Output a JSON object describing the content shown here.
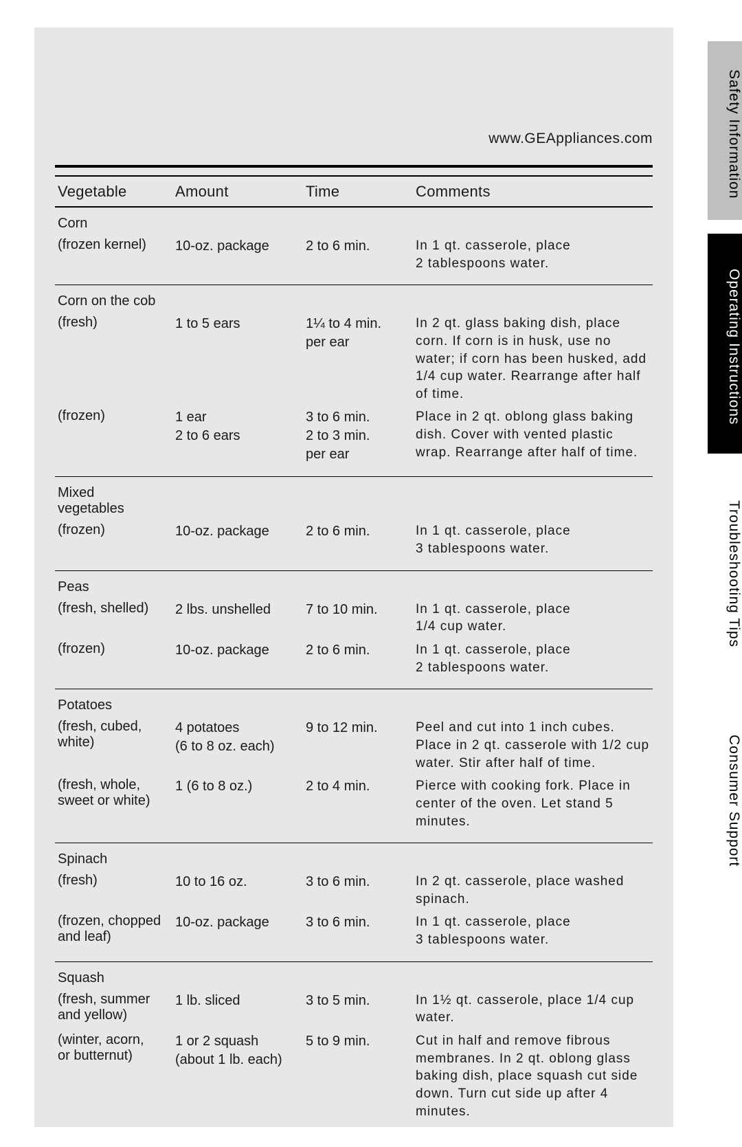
{
  "url": "www.GEAppliances.com",
  "columns": {
    "veg": "Vegetable",
    "amt": "Amount",
    "time": "Time",
    "com": "Comments"
  },
  "side_tabs": {
    "safety": "Safety Information",
    "operating": "Operating Instructions",
    "troubleshoot": "Troubleshooting Tips",
    "consumer": "Consumer Support"
  },
  "groups": [
    {
      "head": "Corn",
      "rows": [
        {
          "sub": "(frozen kernel)",
          "amt": "10-oz. package",
          "time": "2 to 6 min.",
          "com": "In 1 qt. casserole, place\n2 tablespoons water."
        }
      ]
    },
    {
      "head": "Corn on the cob",
      "rows": [
        {
          "sub": "(fresh)",
          "amt": "1 to 5 ears",
          "time": "1¼ to 4 min.\nper ear",
          "com": "In 2 qt. glass baking dish, place corn. If corn is in husk, use no water; if corn has been husked, add 1/4 cup water. Rearrange after half of time."
        },
        {
          "sub": "(frozen)",
          "amt": "1 ear\n2 to 6 ears",
          "time": "3 to 6 min.\n2 to 3 min.\nper ear",
          "com": "Place in 2 qt. oblong glass baking dish. Cover with vented plastic wrap. Rearrange after half of time."
        }
      ]
    },
    {
      "head": "Mixed\nvegetables",
      "rows": [
        {
          "sub": "(frozen)",
          "amt": "10-oz. package",
          "time": "2 to 6 min.",
          "com": "In 1 qt. casserole, place\n3 tablespoons water."
        }
      ]
    },
    {
      "head": "Peas",
      "rows": [
        {
          "sub": "(fresh, shelled)",
          "amt": "2 lbs. unshelled",
          "time": "7 to 10 min.",
          "com": "In 1 qt. casserole, place\n1/4 cup water."
        },
        {
          "sub": "(frozen)",
          "amt": "10-oz. package",
          "time": "2 to 6 min.",
          "com": "In 1 qt. casserole, place\n2 tablespoons water."
        }
      ]
    },
    {
      "head": "Potatoes",
      "rows": [
        {
          "sub": "(fresh, cubed,\nwhite)",
          "amt": "4 potatoes\n(6 to 8 oz. each)",
          "time": "9 to 12 min.",
          "com": "Peel and cut into 1 inch cubes. Place in 2 qt. casserole with 1/2 cup water. Stir after half of time."
        },
        {
          "sub": "(fresh, whole,\nsweet or white)",
          "amt": "1 (6 to 8 oz.)",
          "time": "2 to 4 min.",
          "com": "Pierce with cooking fork. Place in center of the oven. Let stand 5 minutes."
        }
      ]
    },
    {
      "head": "Spinach",
      "rows": [
        {
          "sub": "(fresh)",
          "amt": "10 to 16 oz.",
          "time": "3 to 6 min.",
          "com": "In 2 qt. casserole, place washed spinach."
        },
        {
          "sub": "(frozen, chopped\nand leaf)",
          "amt": "10-oz. package",
          "time": "3 to 6 min.",
          "com": "In 1 qt. casserole, place\n3 tablespoons water."
        }
      ]
    },
    {
      "head": "Squash",
      "rows": [
        {
          "sub": "(fresh, summer\nand yellow)",
          "amt": "1 lb. sliced",
          "time": "3 to 5 min.",
          "com": "In 1½ qt. casserole, place 1/4 cup water."
        },
        {
          "sub": "(winter, acorn,\nor butternut)",
          "amt": "1 or 2 squash\n(about 1 lb. each)",
          "time": "5 to 9 min.",
          "com": "Cut in half and remove fibrous membranes. In 2 qt. oblong glass baking dish, place squash cut side down. Turn cut side up after 4 minutes."
        }
      ]
    }
  ]
}
